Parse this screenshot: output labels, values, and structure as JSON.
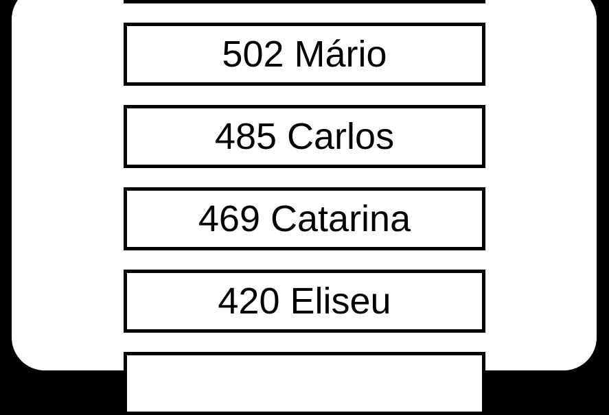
{
  "entries": [
    {
      "score": "",
      "name": ""
    },
    {
      "score": "502",
      "name": "Mário"
    },
    {
      "score": "485",
      "name": "Carlos"
    },
    {
      "score": "469",
      "name": "Catarina"
    },
    {
      "score": "420",
      "name": "Eliseu"
    },
    {
      "score": "",
      "name": ""
    }
  ],
  "colors": {
    "background": "#000000",
    "panel": "#ffffff",
    "border": "#000000"
  }
}
